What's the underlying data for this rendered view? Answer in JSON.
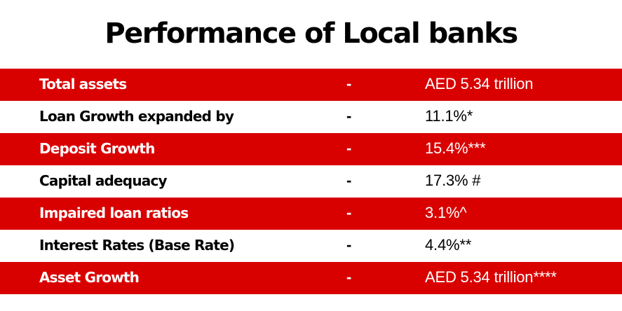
{
  "title": "Performance of Local banks",
  "colors": {
    "accent": "#d90000",
    "text_on_accent": "#ffffff",
    "text": "#000000"
  },
  "rows": [
    {
      "label": "Total assets",
      "separator": "-",
      "value": "AED 5.34 trillion"
    },
    {
      "label": "Loan Growth expanded by",
      "separator": "-",
      "value": "11.1%*"
    },
    {
      "label": "Deposit Growth",
      "separator": "-",
      "value": "15.4%***"
    },
    {
      "label": "Capital adequacy",
      "separator": "-",
      "value": "17.3% #"
    },
    {
      "label": "Impaired loan ratios",
      "separator": "-",
      "value": "3.1%^"
    },
    {
      "label": "Interest Rates (Base Rate)",
      "separator": "-",
      "value": "4.4%**"
    },
    {
      "label": "Asset Growth",
      "separator": "-",
      "value": "AED 5.34 trillion****"
    }
  ]
}
